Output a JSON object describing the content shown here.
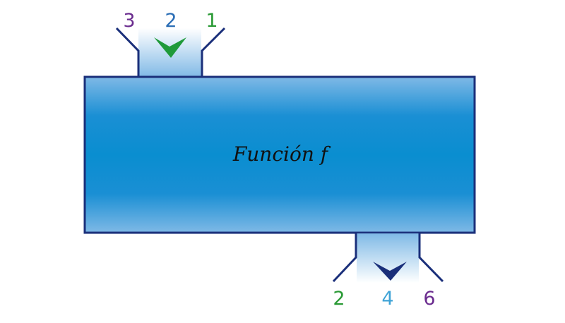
{
  "function_label": "Función f",
  "inputs": [
    {
      "label": "3",
      "color": "#6b2d8f"
    },
    {
      "label": "2",
      "color": "#2a6db5"
    },
    {
      "label": "1",
      "color": "#2a9a35"
    }
  ],
  "outputs": [
    {
      "label": "2",
      "color": "#2a9a35"
    },
    {
      "label": "4",
      "color": "#3fa3d6"
    },
    {
      "label": "6",
      "color": "#6b2d8f"
    }
  ],
  "colors": {
    "machine_fill": "#0a8ed0",
    "outline": "#1a2f7a",
    "input_arrow": "#1f9a3a",
    "output_arrow": "#1a2f7a",
    "text": "#111111"
  }
}
